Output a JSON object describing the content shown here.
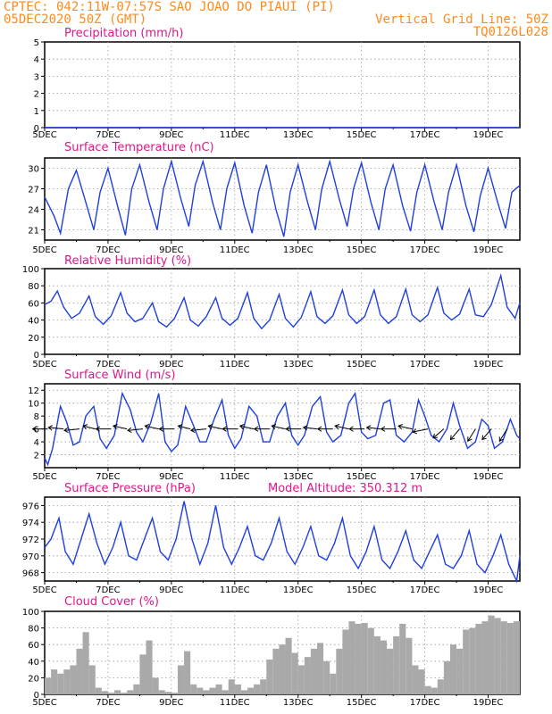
{
  "header": {
    "line1": "CPTEC:   042:11W-07:57S   SAO JOAO DO PIAUI (PI)",
    "line2_left": "05DEC2020 50Z (GMT)",
    "line2_right": "Vertical Grid Line: 50Z",
    "line3_right": "TQ0126L028"
  },
  "colors": {
    "header": "#ff8a1a",
    "titles": "#e0178a",
    "series": "#1f3fe0",
    "cloud": "#a9a9a9",
    "grid": "#9a9a9a"
  },
  "x_tick_labels": [
    "5DEC",
    "7DEC",
    "9DEC",
    "11DEC",
    "13DEC",
    "15DEC",
    "17DEC",
    "19DEC"
  ],
  "chart_data": [
    {
      "type": "line",
      "title": "Precipitation (mm/h)",
      "x_range": [
        5,
        20
      ],
      "ylim": [
        0,
        5
      ],
      "yticks": [
        0,
        1,
        2,
        3,
        4,
        5
      ],
      "grid": true,
      "x": [
        5,
        20
      ],
      "values": [
        0,
        0
      ]
    },
    {
      "type": "line",
      "title": "Surface Temperature (nC)",
      "x_range": [
        5,
        20
      ],
      "ylim": [
        19.5,
        31.5
      ],
      "yticks": [
        21,
        24,
        27,
        30
      ],
      "grid": true,
      "x": [
        5.0,
        5.3,
        5.5,
        5.75,
        6.0,
        6.3,
        6.55,
        6.75,
        7.0,
        7.3,
        7.55,
        7.75,
        8.0,
        8.3,
        8.55,
        8.75,
        9.0,
        9.3,
        9.55,
        9.75,
        10.0,
        10.3,
        10.55,
        10.75,
        11.0,
        11.3,
        11.55,
        11.75,
        12.0,
        12.3,
        12.55,
        12.75,
        13.0,
        13.3,
        13.55,
        13.75,
        14.0,
        14.3,
        14.55,
        14.75,
        15.0,
        15.3,
        15.55,
        15.75,
        16.0,
        16.3,
        16.55,
        16.75,
        17.0,
        17.3,
        17.55,
        17.75,
        18.0,
        18.3,
        18.55,
        18.75,
        19.0,
        19.3,
        19.55,
        19.75,
        20.0
      ],
      "values": [
        25.8,
        23,
        20.5,
        27,
        29.7,
        25,
        21,
        26.5,
        30,
        24.5,
        20.2,
        27,
        30.5,
        25,
        21,
        27,
        31,
        25.5,
        21.5,
        27.5,
        31,
        25,
        21,
        27,
        30.8,
        24.5,
        20.5,
        26.5,
        30.5,
        24,
        20,
        26.5,
        30.5,
        25,
        21,
        27,
        31,
        25.5,
        21.5,
        27,
        30.8,
        25,
        21,
        27,
        30.5,
        24.5,
        20.8,
        26.5,
        30.5,
        25,
        21,
        26.5,
        30.5,
        24.5,
        20.7,
        26,
        30,
        25,
        21.2,
        26.5,
        27.5
      ]
    },
    {
      "type": "line",
      "title": "Relative Humidity (%)",
      "x_range": [
        5,
        20
      ],
      "ylim": [
        0,
        100
      ],
      "yticks": [
        0,
        20,
        40,
        60,
        80,
        100
      ],
      "grid": true,
      "x": [
        5.0,
        5.2,
        5.4,
        5.6,
        5.85,
        6.1,
        6.4,
        6.6,
        6.85,
        7.1,
        7.4,
        7.6,
        7.85,
        8.1,
        8.4,
        8.6,
        8.85,
        9.1,
        9.4,
        9.6,
        9.85,
        10.1,
        10.4,
        10.6,
        10.85,
        11.1,
        11.4,
        11.6,
        11.85,
        12.1,
        12.4,
        12.6,
        12.85,
        13.1,
        13.4,
        13.6,
        13.85,
        14.1,
        14.4,
        14.6,
        14.85,
        15.1,
        15.4,
        15.6,
        15.85,
        16.1,
        16.4,
        16.6,
        16.85,
        17.1,
        17.4,
        17.6,
        17.85,
        18.1,
        18.4,
        18.6,
        18.85,
        19.1,
        19.4,
        19.6,
        19.85,
        20.0
      ],
      "values": [
        58,
        62,
        74,
        55,
        42,
        48,
        68,
        44,
        35,
        45,
        72,
        48,
        38,
        42,
        60,
        38,
        32,
        42,
        66,
        40,
        33,
        44,
        66,
        42,
        34,
        42,
        72,
        42,
        30,
        40,
        70,
        42,
        32,
        43,
        73,
        44,
        36,
        45,
        75,
        46,
        36,
        44,
        75,
        46,
        36,
        44,
        76,
        46,
        38,
        46,
        78,
        48,
        40,
        47,
        76,
        46,
        44,
        58,
        92,
        55,
        42,
        60
      ]
    },
    {
      "type": "line",
      "title": "Surface Wind (m/s)",
      "x_range": [
        5,
        20
      ],
      "ylim": [
        0,
        13
      ],
      "yticks": [
        2,
        4,
        6,
        8,
        10,
        12
      ],
      "grid": true,
      "x": [
        5.0,
        5.1,
        5.25,
        5.5,
        5.7,
        5.9,
        6.1,
        6.3,
        6.55,
        6.75,
        6.95,
        7.2,
        7.45,
        7.7,
        7.9,
        8.1,
        8.35,
        8.6,
        8.8,
        9.0,
        9.2,
        9.45,
        9.7,
        9.9,
        10.1,
        10.35,
        10.6,
        10.8,
        11.0,
        11.2,
        11.45,
        11.7,
        11.9,
        12.1,
        12.35,
        12.6,
        12.8,
        13.0,
        13.2,
        13.45,
        13.7,
        13.9,
        14.1,
        14.35,
        14.6,
        14.8,
        15.0,
        15.2,
        15.45,
        15.7,
        15.9,
        16.1,
        16.35,
        16.6,
        16.8,
        17.0,
        17.2,
        17.45,
        17.7,
        17.9,
        18.1,
        18.35,
        18.6,
        18.8,
        19.0,
        19.2,
        19.45,
        19.7,
        19.9,
        20.0
      ],
      "values": [
        1.5,
        0.5,
        3,
        9.5,
        7,
        3.5,
        4,
        8,
        9.5,
        4.5,
        3,
        5,
        11.5,
        9,
        5.5,
        4,
        7,
        11.5,
        4,
        2.5,
        3.5,
        9.5,
        6.5,
        4,
        4,
        7.5,
        10.5,
        5,
        3,
        4.5,
        9.5,
        8,
        4,
        4,
        8,
        10,
        5,
        3.5,
        5,
        9.5,
        11,
        5.5,
        4,
        5,
        10,
        11.5,
        5.5,
        4.5,
        5,
        10,
        10.5,
        5,
        4,
        5.5,
        10.5,
        8,
        5,
        4,
        6,
        10,
        6.5,
        3,
        4,
        7.5,
        6.5,
        3,
        4,
        7.5,
        5,
        4.5
      ]
    },
    {
      "type": "line",
      "title": "Surface Pressure (hPa)",
      "annotation": "Model Altitude: 350.312 m",
      "x_range": [
        5,
        20
      ],
      "ylim": [
        967,
        977
      ],
      "yticks": [
        968,
        970,
        972,
        974,
        976
      ],
      "grid": true,
      "x": [
        5.0,
        5.2,
        5.45,
        5.65,
        5.9,
        6.15,
        6.4,
        6.65,
        6.9,
        7.15,
        7.4,
        7.65,
        7.9,
        8.15,
        8.4,
        8.65,
        8.9,
        9.15,
        9.4,
        9.65,
        9.9,
        10.15,
        10.4,
        10.65,
        10.9,
        11.15,
        11.4,
        11.65,
        11.9,
        12.15,
        12.4,
        12.65,
        12.9,
        13.15,
        13.4,
        13.65,
        13.9,
        14.15,
        14.4,
        14.65,
        14.9,
        15.15,
        15.4,
        15.65,
        15.9,
        16.15,
        16.4,
        16.65,
        16.9,
        17.15,
        17.4,
        17.65,
        17.9,
        18.15,
        18.4,
        18.65,
        18.9,
        19.15,
        19.4,
        19.65,
        19.9,
        20.0
      ],
      "values": [
        971,
        972,
        974.5,
        970.5,
        969,
        972,
        975,
        971.5,
        969,
        971,
        974,
        970,
        969.5,
        972,
        974.5,
        970.5,
        969.5,
        972,
        976.5,
        972,
        969,
        971.5,
        976,
        971,
        969,
        971,
        973.5,
        970,
        969.5,
        971.5,
        974.5,
        970.5,
        969,
        971,
        973.5,
        970,
        969.5,
        971.5,
        974.5,
        970,
        968.5,
        970.5,
        973.5,
        969.5,
        968.5,
        970.5,
        973,
        969.5,
        968.5,
        970.5,
        972.5,
        969,
        968.5,
        970,
        973,
        969,
        968,
        970,
        972.5,
        969,
        967,
        970
      ]
    },
    {
      "type": "bar",
      "title": "Cloud Cover (%)",
      "x_range": [
        5,
        20
      ],
      "ylim": [
        0,
        100
      ],
      "yticks": [
        0,
        20,
        40,
        60,
        80,
        100
      ],
      "grid": true,
      "x": [
        5.1,
        5.3,
        5.5,
        5.7,
        5.9,
        6.1,
        6.3,
        6.5,
        6.7,
        6.9,
        7.1,
        7.3,
        7.5,
        7.7,
        7.9,
        8.1,
        8.3,
        8.5,
        8.7,
        8.9,
        9.1,
        9.3,
        9.5,
        9.7,
        9.9,
        10.1,
        10.3,
        10.5,
        10.7,
        10.9,
        11.1,
        11.3,
        11.5,
        11.7,
        11.9,
        12.1,
        12.3,
        12.5,
        12.7,
        12.9,
        13.1,
        13.3,
        13.5,
        13.7,
        13.9,
        14.1,
        14.3,
        14.5,
        14.7,
        14.9,
        15.1,
        15.3,
        15.5,
        15.7,
        15.9,
        16.1,
        16.3,
        16.5,
        16.7,
        16.9,
        17.1,
        17.3,
        17.5,
        17.7,
        17.9,
        18.1,
        18.3,
        18.5,
        18.7,
        18.9,
        19.1,
        19.3,
        19.5,
        19.7,
        19.9
      ],
      "values": [
        20,
        30,
        25,
        30,
        35,
        55,
        75,
        35,
        8,
        4,
        2,
        5,
        2,
        5,
        12,
        48,
        65,
        20,
        5,
        3,
        2,
        35,
        52,
        12,
        8,
        5,
        8,
        12,
        5,
        18,
        12,
        5,
        8,
        12,
        18,
        42,
        55,
        60,
        68,
        50,
        35,
        45,
        55,
        62,
        40,
        25,
        55,
        78,
        88,
        85,
        86,
        80,
        70,
        65,
        55,
        70,
        85,
        68,
        35,
        30,
        10,
        8,
        18,
        40,
        60,
        55,
        78,
        80,
        85,
        88,
        95,
        92,
        88,
        86,
        88
      ]
    },
    {
      "type": "vector",
      "title": "Surface Wind arrows (direction)",
      "x_range": [
        5,
        20
      ],
      "x": [
        5.1,
        5.6,
        6.1,
        6.6,
        7.1,
        7.6,
        8.1,
        8.6,
        9.1,
        9.6,
        10.1,
        10.6,
        11.1,
        11.6,
        12.1,
        12.6,
        13.1,
        13.6,
        14.1,
        14.6,
        15.1,
        15.6,
        16.1,
        16.6,
        17.1,
        17.6,
        18.1,
        18.6,
        19.1,
        19.6
      ],
      "u": [
        -1,
        -1,
        -1,
        -0.8,
        -1,
        -0.9,
        -1,
        -0.9,
        -1,
        -0.8,
        -1,
        -0.9,
        -1,
        -0.9,
        -1,
        -0.9,
        -1,
        -0.9,
        -1,
        -0.9,
        -1,
        -0.9,
        -1,
        -0.9,
        -1,
        -0.7,
        -0.6,
        -0.5,
        -0.6,
        -0.5
      ],
      "v": [
        0,
        0.1,
        -0.1,
        0.2,
        0,
        0.2,
        -0.1,
        0.2,
        0,
        0.2,
        -0.1,
        0.2,
        0,
        0.2,
        0,
        0.2,
        0,
        0.1,
        0,
        0.2,
        0,
        0.1,
        0,
        0.2,
        -0.2,
        -0.6,
        -0.7,
        -0.8,
        -0.7,
        -0.8
      ]
    }
  ]
}
